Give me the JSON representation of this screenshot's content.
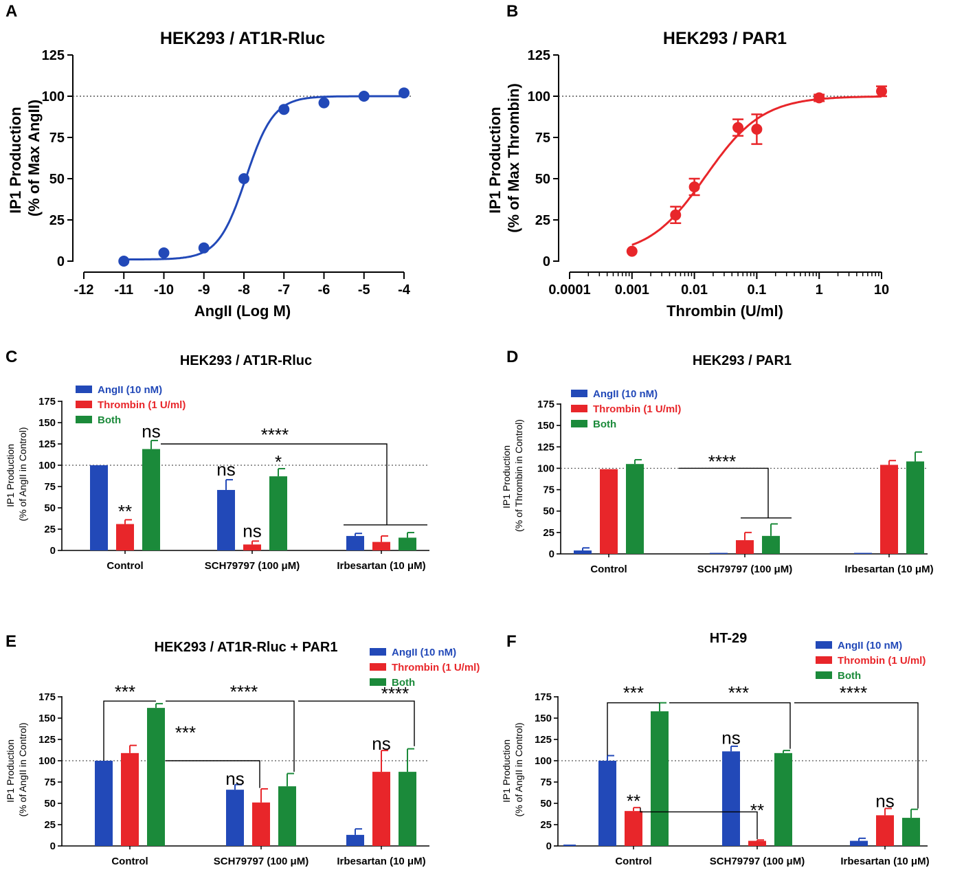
{
  "colors": {
    "blue": "#2249b8",
    "red": "#e8262a",
    "green": "#1b8a3a",
    "axis": "#000000",
    "ref": "#555555"
  },
  "chart_data": [
    {
      "id": "A",
      "panel_label": "A",
      "type": "line",
      "title": "HEK293 / AT1R-Rluc",
      "xlabel": "AngII (Log M)",
      "ylabel": [
        "IP1 Production",
        "(% of Max AngII)"
      ],
      "x_scale": "linear",
      "xlim": [
        -12,
        -4
      ],
      "x_ticks": [
        -12,
        -11,
        -10,
        -9,
        -8,
        -7,
        -6,
        -5,
        -4
      ],
      "x_tick_labels": [
        "-12",
        "-11",
        "-10",
        "-9",
        "-8",
        "-7",
        "-6",
        "-5",
        "-4"
      ],
      "ylim": [
        0,
        125
      ],
      "y_ticks": [
        0,
        25,
        50,
        75,
        100,
        125
      ],
      "y_tick_labels": [
        "0",
        "25",
        "50",
        "75",
        "100",
        "125"
      ],
      "reference_line": 100,
      "series": [
        {
          "name": "AngII",
          "color": "#2249b8",
          "x": [
            -11,
            -10,
            -9,
            -8,
            -7,
            -6,
            -5,
            -4
          ],
          "y": [
            0,
            5,
            8,
            50,
            92,
            96,
            100,
            102
          ],
          "err": [
            0,
            0,
            0,
            0,
            0,
            0,
            0,
            0
          ],
          "fit": {
            "bottom": 1,
            "top": 100,
            "logEC50": -7.95,
            "hill": 1.25
          }
        }
      ]
    },
    {
      "id": "B",
      "panel_label": "B",
      "type": "line",
      "title": "HEK293 / PAR1",
      "xlabel": "Thrombin (U/ml)",
      "ylabel": [
        "IP1 Production",
        "(% of Max Thrombin)"
      ],
      "x_scale": "log",
      "xlim": [
        0.0001,
        10
      ],
      "x_ticks": [
        0.0001,
        0.001,
        0.01,
        0.1,
        1,
        10
      ],
      "x_tick_labels": [
        "0.0001",
        "0.001",
        "0.01",
        "0.1",
        "1",
        "10"
      ],
      "ylim": [
        0,
        125
      ],
      "y_ticks": [
        0,
        25,
        50,
        75,
        100,
        125
      ],
      "y_tick_labels": [
        "0",
        "25",
        "50",
        "75",
        "100",
        "125"
      ],
      "reference_line": 100,
      "series": [
        {
          "name": "Thrombin",
          "color": "#e8262a",
          "x": [
            0.001,
            0.005,
            0.01,
            0.05,
            0.1,
            1,
            10
          ],
          "y": [
            6,
            28,
            45,
            81,
            80,
            99,
            103
          ],
          "err": [
            0,
            5,
            5,
            5,
            9,
            2,
            3
          ],
          "fit": {
            "bottom": 3,
            "top": 100,
            "logEC50": -1.82,
            "hill": 0.95
          }
        }
      ]
    },
    {
      "id": "C",
      "panel_label": "C",
      "type": "bar",
      "title": "HEK293 / AT1R-Rluc",
      "ylabel": [
        "IP1 Production",
        "(% of AngII in Control)"
      ],
      "ylim": [
        0,
        175
      ],
      "y_ticks": [
        0,
        25,
        50,
        75,
        100,
        125,
        150,
        175
      ],
      "y_tick_labels": [
        "0",
        "25",
        "50",
        "75",
        "100",
        "125",
        "150",
        "175"
      ],
      "reference_line": 100,
      "categories": [
        "Control",
        "SCH79797 (100 μM)",
        "Irbesartan (10 μM)"
      ],
      "legend": [
        "AngII (10 nM)",
        "Thrombin (1 U/ml)",
        "Both"
      ],
      "series": [
        {
          "name": "AngII (10 nM)",
          "values": [
            100,
            71,
            17
          ],
          "err": [
            0,
            12,
            3
          ]
        },
        {
          "name": "Thrombin (1 U/ml)",
          "values": [
            31,
            7,
            10
          ],
          "err": [
            5,
            4,
            7
          ]
        },
        {
          "name": "Both",
          "values": [
            119,
            87,
            15
          ],
          "err": [
            10,
            9,
            6
          ]
        }
      ],
      "annotations": [
        {
          "text": "ns",
          "cat": 0,
          "bar": 2,
          "y": 140
        },
        {
          "text": "**",
          "cat": 0,
          "bar": 1,
          "y": 46
        },
        {
          "text": "ns",
          "cat": 1,
          "bar": 0,
          "y": 95
        },
        {
          "text": "ns",
          "cat": 1,
          "bar": 1,
          "y": 23
        },
        {
          "text": "*",
          "cat": 1,
          "bar": 2,
          "y": 104
        },
        {
          "text": "****",
          "x": 310,
          "y": 136
        }
      ]
    },
    {
      "id": "D",
      "panel_label": "D",
      "type": "bar",
      "title": "HEK293 / PAR1",
      "ylabel": [
        "IP1 Production",
        "(% of Thrombin in Control)"
      ],
      "ylim": [
        0,
        175
      ],
      "y_ticks": [
        0,
        25,
        50,
        75,
        100,
        125,
        150,
        175
      ],
      "y_tick_labels": [
        "0",
        "25",
        "50",
        "75",
        "100",
        "125",
        "150",
        "175"
      ],
      "reference_line": 100,
      "categories": [
        "Control",
        "SCH79797 (100 μM)",
        "Irbesartan (10 μM)"
      ],
      "legend": [
        "AngII (10 nM)",
        "Thrombin (1 U/ml)",
        "Both"
      ],
      "series": [
        {
          "name": "AngII (10 nM)",
          "values": [
            4,
            0,
            0
          ],
          "err": [
            3,
            0,
            0
          ]
        },
        {
          "name": "Thrombin (1 U/ml)",
          "values": [
            99,
            16,
            104
          ],
          "err": [
            0,
            9,
            5
          ]
        },
        {
          "name": "Both",
          "values": [
            105,
            21,
            108
          ],
          "err": [
            5,
            14,
            11
          ]
        }
      ],
      "annotations": [
        {
          "text": "****",
          "x": 235,
          "y": 108
        }
      ]
    },
    {
      "id": "E",
      "panel_label": "E",
      "type": "bar",
      "title": "HEK293 / AT1R-Rluc + PAR1",
      "ylabel": [
        "IP1 Production",
        "(% of AngII in Control)"
      ],
      "ylim": [
        0,
        175
      ],
      "y_ticks": [
        0,
        25,
        50,
        75,
        100,
        125,
        150,
        175
      ],
      "y_tick_labels": [
        "0",
        "25",
        "50",
        "75",
        "100",
        "125",
        "150",
        "175"
      ],
      "reference_line": 100,
      "categories": [
        "Control",
        "SCH79797 (100 μM)",
        "Irbesartan (10 μM)"
      ],
      "legend": [
        "AngII (10 nM)",
        "Thrombin (1 U/ml)",
        "Both"
      ],
      "series": [
        {
          "name": "AngII (10 nM)",
          "values": [
            100,
            66,
            13
          ],
          "err": [
            0,
            6,
            7
          ]
        },
        {
          "name": "Thrombin (1 U/ml)",
          "values": [
            109,
            51,
            87
          ],
          "err": [
            9,
            16,
            25
          ]
        },
        {
          "name": "Both",
          "values": [
            162,
            70,
            87
          ],
          "err": [
            5,
            15,
            27
          ]
        }
      ],
      "annotations": [
        {
          "text": "***",
          "x": 92,
          "y": 181
        },
        {
          "text": "****",
          "x": 265,
          "y": 181
        },
        {
          "text": "****",
          "x": 485,
          "y": 179
        },
        {
          "text": "***",
          "x": 180,
          "y": 133
        },
        {
          "text": "ns",
          "cat": 1,
          "bar": 0,
          "y": 79
        },
        {
          "text": "ns",
          "cat": 2,
          "bar": 1,
          "y": 120
        }
      ]
    },
    {
      "id": "F",
      "panel_label": "F",
      "type": "bar",
      "title": "HT-29",
      "ylabel": [
        "IP1 Production",
        "(% of AngII in Control)"
      ],
      "ylim": [
        0,
        175
      ],
      "y_ticks": [
        0,
        25,
        50,
        75,
        100,
        125,
        150,
        175
      ],
      "y_tick_labels": [
        "0",
        "25",
        "50",
        "75",
        "100",
        "125",
        "150",
        "175"
      ],
      "reference_line": 100,
      "categories": [
        "Control",
        "SCH79797 (100 μM)",
        "Irbesartan (10 μM)"
      ],
      "legend": [
        "AngII (10 nM)",
        "Thrombin (1 U/ml)",
        "Both"
      ],
      "series": [
        {
          "name": "AngII (10 nM)",
          "values": [
            100,
            111,
            6
          ],
          "err": [
            6,
            6,
            3
          ]
        },
        {
          "name": "Thrombin (1 U/ml)",
          "values": [
            41,
            6,
            36
          ],
          "err": [
            4,
            1,
            8
          ]
        },
        {
          "name": "Both",
          "values": [
            158,
            109,
            33
          ],
          "err": [
            10,
            3,
            10
          ]
        }
      ],
      "annotations": [
        {
          "text": "***",
          "x": 110,
          "y": 180
        },
        {
          "text": "***",
          "x": 263,
          "y": 180
        },
        {
          "text": "****",
          "x": 430,
          "y": 180
        },
        {
          "text": "ns",
          "cat": 1,
          "bar": 0,
          "y": 127
        },
        {
          "text": "**",
          "cat": 0,
          "bar": 1,
          "y": 53
        },
        {
          "text": "**",
          "cat": 1,
          "bar": 1,
          "y": 42
        },
        {
          "text": "ns",
          "cat": 2,
          "bar": 1,
          "y": 53
        }
      ]
    }
  ]
}
